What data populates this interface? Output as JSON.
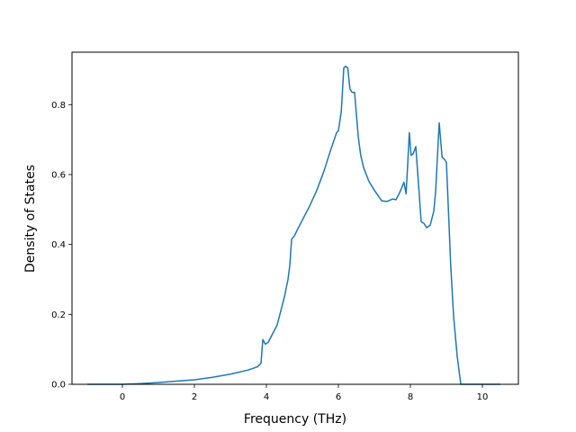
{
  "chart_data": {
    "type": "line",
    "title": "",
    "xlabel": "Frequency (THz)",
    "ylabel": "Density of States",
    "xlim": [
      -1.4,
      11.0
    ],
    "ylim": [
      0.0,
      0.95
    ],
    "xticks": [
      0,
      2,
      4,
      6,
      8,
      10
    ],
    "yticks": [
      0.0,
      0.2,
      0.4,
      0.6,
      0.8
    ],
    "xtick_labels": [
      "0",
      "2",
      "4",
      "6",
      "8",
      "10"
    ],
    "ytick_labels": [
      "0.0",
      "0.2",
      "0.4",
      "0.6",
      "0.8"
    ],
    "grid": false,
    "legend": "none",
    "colors": {
      "line": "#1f77b4",
      "axes": "#000000"
    },
    "series": [
      {
        "x": [
          -0.97,
          0.0,
          0.5,
          1.0,
          1.5,
          2.0,
          2.5,
          3.0,
          3.5,
          3.75,
          3.85,
          3.9,
          3.97,
          4.05,
          4.15,
          4.3,
          4.5,
          4.6,
          4.65,
          4.7,
          4.78,
          4.85,
          5.0,
          5.2,
          5.4,
          5.6,
          5.8,
          5.95,
          6.0,
          6.08,
          6.15,
          6.2,
          6.26,
          6.32,
          6.38,
          6.45,
          6.55,
          6.62,
          6.7,
          6.85,
          7.0,
          7.2,
          7.35,
          7.5,
          7.6,
          7.7,
          7.75,
          7.82,
          7.88,
          7.92,
          7.97,
          8.02,
          8.08,
          8.15,
          8.22,
          8.3,
          8.38,
          8.45,
          8.55,
          8.65,
          8.7,
          8.8,
          8.88,
          8.95,
          9.0,
          9.08,
          9.12,
          9.2,
          9.3,
          9.4,
          9.5,
          9.6,
          9.7,
          10.0,
          10.5
        ],
        "y": [
          0.0,
          0.0,
          0.002,
          0.005,
          0.009,
          0.013,
          0.02,
          0.029,
          0.041,
          0.05,
          0.06,
          0.128,
          0.115,
          0.12,
          0.14,
          0.17,
          0.25,
          0.3,
          0.34,
          0.415,
          0.425,
          0.44,
          0.47,
          0.51,
          0.555,
          0.61,
          0.675,
          0.72,
          0.725,
          0.78,
          0.905,
          0.91,
          0.905,
          0.845,
          0.835,
          0.835,
          0.71,
          0.655,
          0.62,
          0.58,
          0.555,
          0.525,
          0.523,
          0.53,
          0.528,
          0.548,
          0.56,
          0.578,
          0.545,
          0.62,
          0.72,
          0.655,
          0.66,
          0.68,
          0.58,
          0.465,
          0.46,
          0.448,
          0.455,
          0.495,
          0.55,
          0.748,
          0.65,
          0.643,
          0.635,
          0.44,
          0.34,
          0.195,
          0.08,
          0.0,
          0.0,
          0.0,
          0.0,
          0.0,
          0.0
        ]
      }
    ]
  }
}
